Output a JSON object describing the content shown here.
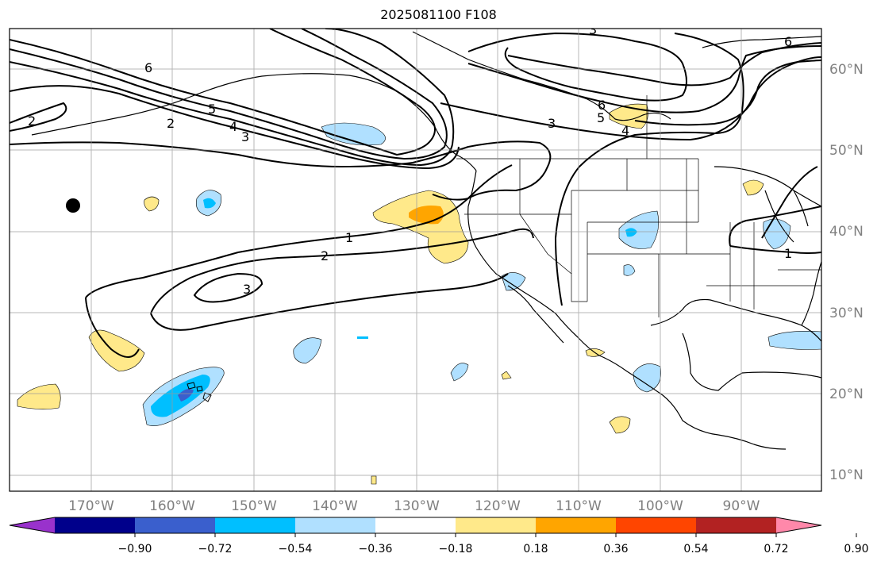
{
  "title": "2025081100 F108",
  "map": {
    "latitude_labels": [
      "60°N",
      "50°N",
      "40°N",
      "30°N",
      "20°N",
      "10°N"
    ],
    "longitude_labels": [
      "170°W",
      "160°W",
      "150°W",
      "140°W",
      "130°W",
      "120°W",
      "110°W",
      "100°W",
      "90°W"
    ],
    "gridlines": true,
    "station_marker": {
      "lon": -172,
      "lat": 43
    },
    "contour_labels": [
      "1",
      "2",
      "3",
      "4",
      "5",
      "6"
    ]
  },
  "colorbar": {
    "ticks": [
      "−0.90",
      "−0.72",
      "−0.54",
      "−0.36",
      "−0.18",
      "0.18",
      "0.36",
      "0.54",
      "0.72",
      "0.90"
    ],
    "colors": [
      "#9932cc",
      "#00008b",
      "#3a5fcd",
      "#00bfff",
      "#b0e0ff",
      "#ffffff",
      "#ffe98a",
      "#ffa500",
      "#ff4500",
      "#b22222",
      "#ff88aa"
    ],
    "extend": "both"
  }
}
